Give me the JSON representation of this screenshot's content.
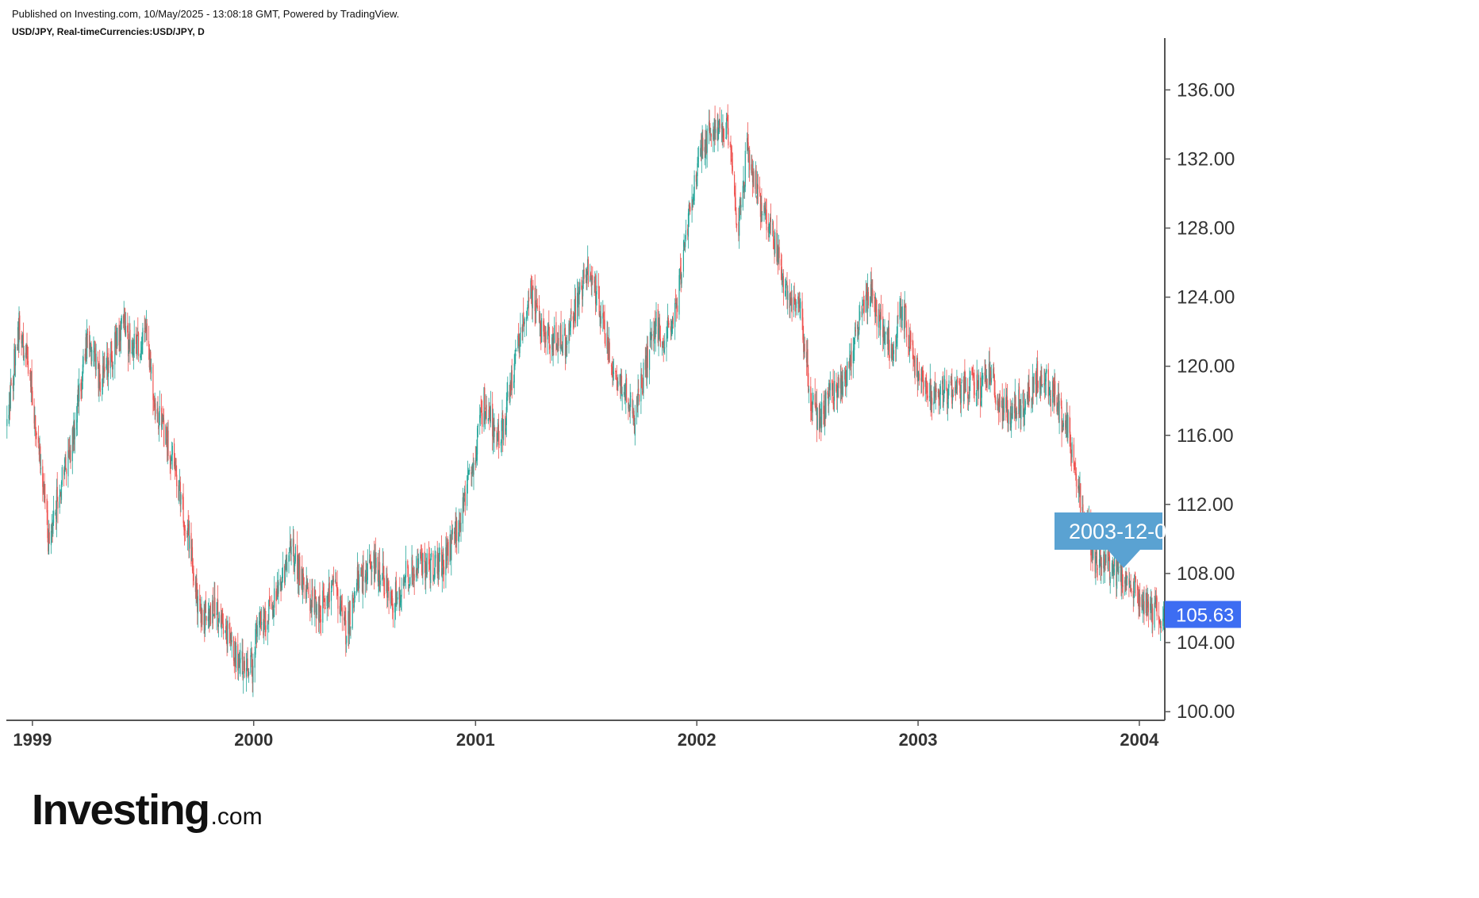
{
  "header": {
    "published": "Published on Investing.com, 10/May/2025 - 13:08:18 GMT, Powered by TradingView.",
    "symbol": "USD/JPY, Real-timeCurrencies:USD/JPY, D"
  },
  "logo": {
    "main": "Investing",
    "suffix": ".com"
  },
  "colors": {
    "up": "#26a69a",
    "down": "#ef5350",
    "price_tag": "#3d6df2",
    "date_tag": "#5aa2d2",
    "axis": "#555555"
  },
  "chart_data": {
    "type": "candlestick",
    "interval": "D",
    "x_tick_labels": [
      "1999",
      "2000",
      "2001",
      "2002",
      "2003",
      "2004"
    ],
    "y_tick_labels": [
      "100.00",
      "104.00",
      "108.00",
      "112.00",
      "116.00",
      "120.00",
      "124.00",
      "128.00",
      "132.00",
      "136.00"
    ],
    "ylim": [
      99.5,
      139.0
    ],
    "xlim": [
      "1998-11-19",
      "2004-02-12"
    ],
    "last_price": "105.63",
    "crosshair_date_label": "2003-12-0",
    "price_path": [
      [
        "1998-11-20",
        116.5
      ],
      [
        "1998-12-10",
        122.5
      ],
      [
        "1998-12-28",
        119.5
      ],
      [
        "1999-01-12",
        115.0
      ],
      [
        "1999-01-20",
        113.0
      ],
      [
        "1999-01-27",
        110.0
      ],
      [
        "1999-02-12",
        112.5
      ],
      [
        "1999-03-05",
        115.0
      ],
      [
        "1999-04-01",
        121.5
      ],
      [
        "1999-04-25",
        119.0
      ],
      [
        "1999-05-12",
        120.5
      ],
      [
        "1999-05-28",
        122.5
      ],
      [
        "1999-06-12",
        121.0
      ],
      [
        "1999-07-08",
        121.5
      ],
      [
        "1999-07-25",
        117.5
      ],
      [
        "1999-08-25",
        114.0
      ],
      [
        "1999-09-15",
        110.0
      ],
      [
        "1999-10-05",
        105.5
      ],
      [
        "1999-10-25",
        106.0
      ],
      [
        "1999-11-20",
        104.5
      ],
      [
        "1999-12-05",
        103.0
      ],
      [
        "1999-12-30",
        102.5
      ],
      [
        "2000-01-05",
        104.5
      ],
      [
        "2000-02-01",
        106.0
      ],
      [
        "2000-03-05",
        109.5
      ],
      [
        "2000-03-25",
        107.0
      ],
      [
        "2000-04-20",
        106.0
      ],
      [
        "2000-05-15",
        107.5
      ],
      [
        "2000-06-01",
        104.5
      ],
      [
        "2000-06-20",
        107.5
      ],
      [
        "2000-07-20",
        108.5
      ],
      [
        "2000-08-20",
        106.5
      ],
      [
        "2000-09-10",
        108.0
      ],
      [
        "2000-10-10",
        108.5
      ],
      [
        "2000-11-10",
        108.5
      ],
      [
        "2000-12-10",
        111.5
      ],
      [
        "2000-12-30",
        114.5
      ],
      [
        "2001-01-15",
        118.0
      ],
      [
        "2001-02-05",
        116.0
      ],
      [
        "2001-02-20",
        117.0
      ],
      [
        "2001-03-10",
        121.0
      ],
      [
        "2001-04-01",
        124.5
      ],
      [
        "2001-04-15",
        122.5
      ],
      [
        "2001-05-10",
        121.5
      ],
      [
        "2001-06-01",
        121.5
      ],
      [
        "2001-06-20",
        124.0
      ],
      [
        "2001-07-05",
        125.5
      ],
      [
        "2001-07-25",
        123.5
      ],
      [
        "2001-08-15",
        120.0
      ],
      [
        "2001-09-01",
        119.0
      ],
      [
        "2001-09-20",
        117.0
      ],
      [
        "2001-10-05",
        119.5
      ],
      [
        "2001-10-25",
        122.5
      ],
      [
        "2001-11-10",
        121.5
      ],
      [
        "2001-11-30",
        124.0
      ],
      [
        "2001-12-20",
        129.0
      ],
      [
        "2002-01-10",
        132.5
      ],
      [
        "2002-01-30",
        134.0
      ],
      [
        "2002-02-20",
        133.5
      ],
      [
        "2002-03-10",
        128.0
      ],
      [
        "2002-03-25",
        132.5
      ],
      [
        "2002-04-20",
        129.0
      ],
      [
        "2002-05-10",
        127.0
      ],
      [
        "2002-05-30",
        124.0
      ],
      [
        "2002-06-20",
        123.5
      ],
      [
        "2002-07-10",
        117.5
      ],
      [
        "2002-07-25",
        117.0
      ],
      [
        "2002-08-10",
        118.5
      ],
      [
        "2002-09-01",
        119.0
      ],
      [
        "2002-09-25",
        122.5
      ],
      [
        "2002-10-15",
        124.0
      ],
      [
        "2002-11-05",
        122.0
      ],
      [
        "2002-11-20",
        121.0
      ],
      [
        "2002-12-05",
        123.5
      ],
      [
        "2002-12-25",
        120.5
      ],
      [
        "2003-01-15",
        118.5
      ],
      [
        "2003-02-10",
        118.5
      ],
      [
        "2003-03-10",
        118.5
      ],
      [
        "2003-03-25",
        119.0
      ],
      [
        "2003-04-15",
        118.5
      ],
      [
        "2003-05-01",
        120.0
      ],
      [
        "2003-05-15",
        117.5
      ],
      [
        "2003-06-05",
        117.5
      ],
      [
        "2003-06-25",
        118.0
      ],
      [
        "2003-07-20",
        119.5
      ],
      [
        "2003-08-10",
        118.5
      ],
      [
        "2003-08-25",
        117.0
      ],
      [
        "2003-09-05",
        116.5
      ],
      [
        "2003-09-22",
        113.0
      ],
      [
        "2003-10-01",
        111.5
      ],
      [
        "2003-10-20",
        109.0
      ],
      [
        "2003-11-10",
        108.5
      ],
      [
        "2003-12-05",
        107.5
      ],
      [
        "2003-12-25",
        107.0
      ],
      [
        "2004-01-15",
        106.0
      ],
      [
        "2004-02-10",
        105.63
      ]
    ]
  }
}
